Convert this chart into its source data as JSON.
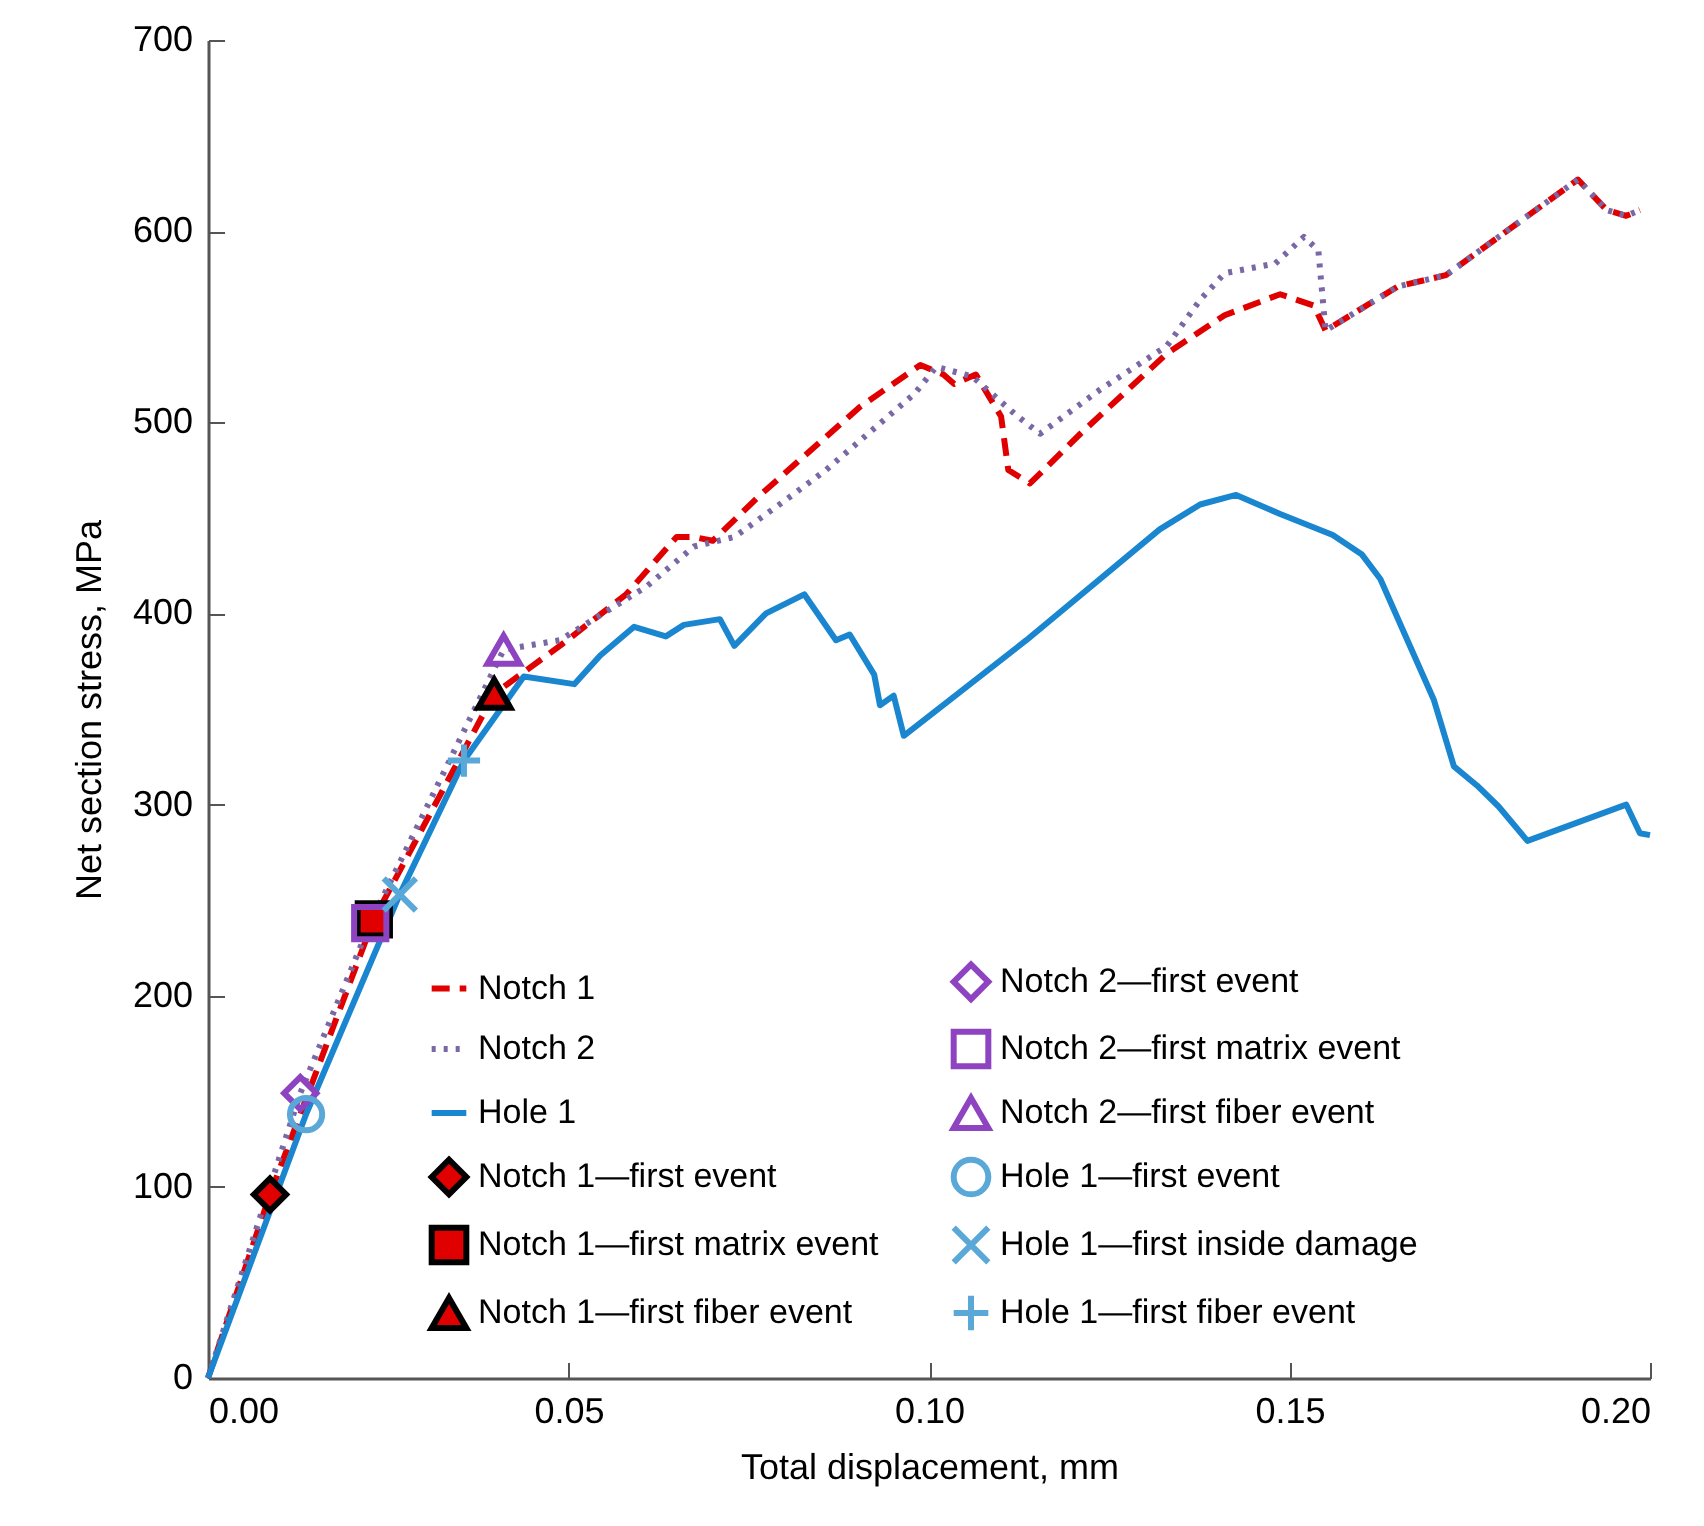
{
  "chart_data": {
    "type": "line",
    "xlabel": "Total displacement, mm",
    "ylabel": "Net section stress, MPa",
    "xlim": [
      0,
      0.2
    ],
    "xticks": [
      {
        "value": 0,
        "label": "0.00"
      },
      {
        "value": 0.05,
        "label": "0.05"
      },
      {
        "value": 0.1,
        "label": "0.10"
      },
      {
        "value": 0.15,
        "label": "0.15"
      },
      {
        "value": 0.2,
        "label": "0.20"
      }
    ],
    "ylim": [
      0,
      700
    ],
    "yticks": [
      0,
      100,
      200,
      300,
      400,
      500,
      600,
      700
    ],
    "grid": false,
    "legend": "bottom",
    "series": [
      {
        "name": "Notch 1",
        "line_style": "dashed",
        "color": "#e00000",
        "x": [
          0,
          0.0086,
          0.023,
          0.0397,
          0.0488,
          0.058,
          0.065,
          0.0674,
          0.07,
          0.0766,
          0.0904,
          0.0988,
          0.102,
          0.1035,
          0.1065,
          0.11,
          0.111,
          0.114,
          0.121,
          0.133,
          0.141,
          0.1487,
          0.1534,
          0.155,
          0.165,
          0.1717,
          0.19,
          0.194,
          0.1967,
          0.1986
        ],
        "values": [
          0,
          96,
          240,
          358,
          383,
          410,
          440,
          440,
          438,
          462,
          508,
          530,
          525,
          520,
          525,
          503,
          475,
          468,
          494,
          536,
          556,
          567,
          561,
          548,
          571,
          577,
          627,
          611,
          608,
          611
        ]
      },
      {
        "name": "Notch 2",
        "line_style": "dotted",
        "color": "#7a68a6",
        "x": [
          0,
          0.0128,
          0.0225,
          0.041,
          0.0488,
          0.0608,
          0.0674,
          0.073,
          0.08,
          0.0857,
          0.098,
          0.101,
          0.106,
          0.112,
          0.1154,
          0.1237,
          0.133,
          0.1376,
          0.141,
          0.148,
          0.152,
          0.154,
          0.155,
          0.165,
          0.1717,
          0.19,
          0.194,
          0.1967,
          0.1986
        ],
        "values": [
          0,
          149,
          238,
          381,
          386,
          414,
          435,
          440,
          459,
          475,
          515,
          529,
          524,
          504,
          494,
          517,
          540,
          564,
          578,
          583,
          597,
          590,
          548,
          571,
          577,
          627,
          611,
          608,
          611
        ]
      },
      {
        "name": "Hole 1",
        "line_style": "solid",
        "color": "#1a86d0",
        "x": [
          0,
          0.0136,
          0.0266,
          0.0355,
          0.0438,
          0.0508,
          0.0544,
          0.0591,
          0.0635,
          0.066,
          0.071,
          0.073,
          0.0774,
          0.0827,
          0.0871,
          0.089,
          0.0924,
          0.0932,
          0.0951,
          0.0965,
          0.1135,
          0.132,
          0.1376,
          0.1426,
          0.1487,
          0.156,
          0.16,
          0.1626,
          0.166,
          0.17,
          0.1728,
          0.176,
          0.179,
          0.183,
          0.1967,
          0.1986,
          0.2
        ],
        "values": [
          0,
          138,
          253,
          323,
          367,
          363,
          378,
          393,
          388,
          394,
          397,
          383,
          400,
          410,
          386,
          389,
          368,
          352,
          357,
          336,
          386,
          444,
          457,
          462,
          452,
          441,
          431,
          418,
          389,
          355,
          320,
          310,
          299,
          281,
          300,
          285,
          284
        ]
      },
      {
        "name": "Notch 1—first event",
        "type": "scatter",
        "marker": "diamond",
        "color": "#e00000",
        "x": [
          0.0086
        ],
        "values": [
          96
        ]
      },
      {
        "name": "Notch 1—first matrix event",
        "type": "scatter",
        "marker": "square",
        "color": "#e00000",
        "x": [
          0.023
        ],
        "values": [
          240
        ]
      },
      {
        "name": "Notch 1—first fiber event",
        "type": "scatter",
        "marker": "triangle",
        "color": "#e00000",
        "x": [
          0.0397
        ],
        "values": [
          358
        ]
      },
      {
        "name": "Notch 2—first event",
        "type": "scatter",
        "marker": "diamond",
        "color": "#8e44c0",
        "x": [
          0.0128
        ],
        "values": [
          149
        ]
      },
      {
        "name": "Notch 2—first matrix event",
        "type": "scatter",
        "marker": "square",
        "color": "#8e44c0",
        "x": [
          0.0225
        ],
        "values": [
          238
        ]
      },
      {
        "name": "Notch 2—first fiber event",
        "type": "scatter",
        "marker": "triangle",
        "color": "#8e44c0",
        "x": [
          0.041
        ],
        "values": [
          381
        ]
      },
      {
        "name": "Hole 1—first event",
        "type": "scatter",
        "marker": "circle",
        "color": "#5aa8d8",
        "x": [
          0.0136
        ],
        "values": [
          138
        ]
      },
      {
        "name": "Hole 1—first inside damage",
        "type": "scatter",
        "marker": "x",
        "color": "#5aa8d8",
        "x": [
          0.0266
        ],
        "values": [
          253
        ]
      },
      {
        "name": "Hole 1—first fiber event",
        "type": "scatter",
        "marker": "cross",
        "color": "#5aa8d8",
        "x": [
          0.0355
        ],
        "values": [
          323
        ]
      }
    ]
  }
}
